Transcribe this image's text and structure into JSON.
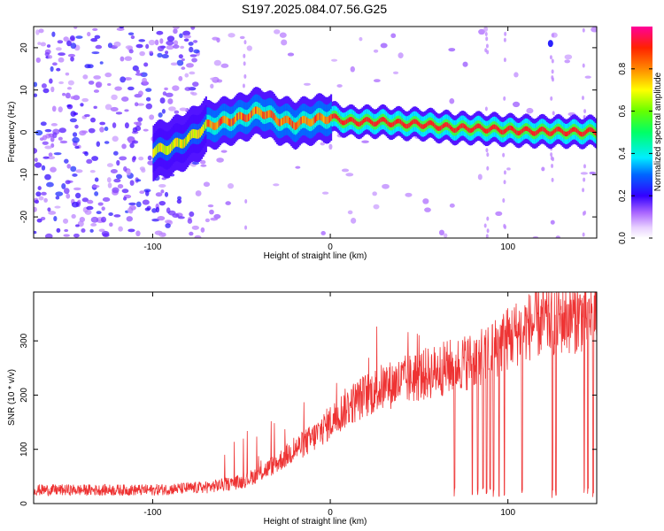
{
  "title": "S197.2025.084.07.56.G25",
  "chart_data": [
    {
      "type": "heatmap",
      "xlabel": "Height of straight line (km)",
      "ylabel": "Frequency (Hz)",
      "xlim": [
        -167,
        150
      ],
      "ylim": [
        -25,
        25
      ],
      "xticks": [
        -100,
        0,
        100
      ],
      "yticks": [
        -20,
        -10,
        0,
        10,
        20
      ],
      "colorbar": {
        "label": "Normalized spectral amplitude",
        "range": [
          0.0,
          1.0
        ],
        "ticks": [
          "0.0",
          "0.2",
          "0.4",
          "0.6",
          "0.8"
        ],
        "tick_values": [
          0.0,
          0.2,
          0.4,
          0.6,
          0.8
        ]
      },
      "ridge": {
        "x": [
          -100,
          -90,
          -80,
          -70,
          -60,
          -50,
          -40,
          -30,
          -20,
          -10,
          0,
          10,
          20,
          30,
          40,
          50,
          60,
          70,
          80,
          90,
          100,
          110,
          120,
          130,
          140,
          150
        ],
        "freq": [
          -4.5,
          -3.5,
          -1.5,
          1.5,
          2.5,
          3.5,
          5.0,
          3.0,
          2.0,
          3.0,
          3.5,
          2.5,
          2.5,
          2.5,
          2.0,
          2.0,
          1.5,
          1.0,
          1.0,
          0.8,
          0.5,
          0.3,
          0.2,
          0.2,
          0.1,
          0.1
        ]
      }
    },
    {
      "type": "line",
      "xlabel": "Height of straight line (km)",
      "ylabel": "SNR (10 * v/v)",
      "xlim": [
        -167,
        150
      ],
      "ylim": [
        0,
        390
      ],
      "xticks": [
        -100,
        0,
        100
      ],
      "yticks": [
        0,
        100,
        200,
        300
      ],
      "color": "#ee3333",
      "trend": {
        "x": [
          -167,
          -100,
          -70,
          -50,
          -40,
          -30,
          -20,
          -10,
          0,
          10,
          20,
          30,
          40,
          50,
          60,
          70,
          80,
          90,
          100,
          110,
          120,
          130,
          140,
          150
        ],
        "y": [
          25,
          25,
          30,
          40,
          55,
          75,
          100,
          120,
          150,
          180,
          200,
          215,
          225,
          235,
          245,
          255,
          265,
          280,
          305,
          325,
          335,
          340,
          345,
          350
        ]
      },
      "dropouts_x": [
        70,
        80,
        83,
        86,
        88,
        90,
        92,
        95,
        98,
        108,
        125,
        127,
        143,
        145,
        148
      ]
    }
  ]
}
